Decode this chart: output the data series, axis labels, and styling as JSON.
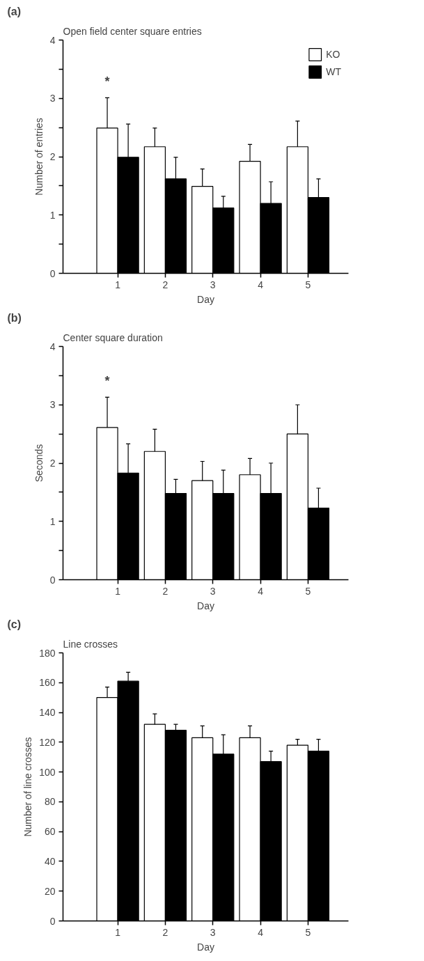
{
  "chart_data": [
    {
      "type": "bar",
      "title": "Open field center square entries",
      "xlabel": "Day",
      "ylabel": "Number of entries",
      "categories": [
        "1",
        "2",
        "3",
        "4",
        "5"
      ],
      "series": [
        {
          "name": "KO",
          "color": "#ffffff",
          "values": [
            2.49,
            2.17,
            1.49,
            1.92,
            2.17
          ],
          "errors": [
            [
              2.49,
              3.01
            ],
            [
              2.17,
              2.49
            ],
            [
              1.49,
              1.79
            ],
            [
              1.92,
              2.21
            ],
            [
              2.17,
              2.61
            ]
          ]
        },
        {
          "name": "WT",
          "color": "#000000",
          "values": [
            1.99,
            1.62,
            1.12,
            1.2,
            1.3
          ],
          "errors": [
            [
              1.99,
              2.56
            ],
            [
              1.62,
              1.99
            ],
            [
              1.12,
              1.32
            ],
            [
              1.2,
              1.57
            ],
            [
              1.3,
              1.62
            ]
          ]
        }
      ],
      "ylim": [
        0,
        4
      ],
      "yticks": [
        0,
        {
          "value": 0.5,
          "label": null
        },
        1,
        {
          "value": 1.5,
          "label": null
        },
        2,
        {
          "value": 2.5,
          "label": null
        },
        3,
        {
          "value": 3.5,
          "label": null
        },
        4
      ],
      "annotations": [
        "(a)",
        "*"
      ],
      "legend": "top right",
      "grid": false
    },
    {
      "type": "bar",
      "title": "Center square duration",
      "xlabel": "Day",
      "ylabel": "Seconds",
      "categories": [
        "1",
        "2",
        "3",
        "4",
        "5"
      ],
      "series": [
        {
          "color": "#ffffff",
          "values": [
            2.61,
            2.2,
            1.7,
            1.8,
            2.5
          ],
          "errors": [
            [
              2.61,
              3.13
            ],
            [
              2.2,
              2.58
            ],
            [
              1.7,
              2.03
            ],
            [
              1.8,
              2.08
            ],
            [
              2.5,
              3.0
            ]
          ]
        },
        {
          "color": "#000000",
          "values": [
            1.83,
            1.48,
            1.48,
            1.48,
            1.23
          ],
          "errors": [
            [
              1.83,
              2.33
            ],
            [
              1.48,
              1.72
            ],
            [
              1.48,
              1.88
            ],
            [
              1.48,
              2.0
            ],
            [
              1.23,
              1.57
            ]
          ]
        }
      ],
      "ylim": [
        0,
        4
      ],
      "yticks": [
        0,
        {
          "value": 0.5,
          "label": null
        },
        1,
        {
          "value": 1.5,
          "label": null
        },
        2,
        {
          "value": 2.5,
          "label": null
        },
        3,
        {
          "value": 3.5,
          "label": null
        },
        4
      ],
      "annotations": [
        "(b)",
        "*"
      ],
      "grid": false
    },
    {
      "type": "bar",
      "title": "Line crosses",
      "xlabel": "Day",
      "ylabel": "Number of line crosses",
      "categories": [
        "1",
        "2",
        "3",
        "4",
        "5"
      ],
      "series": [
        {
          "color": "#ffffff",
          "values": [
            150,
            132,
            123,
            123,
            118
          ],
          "errors": [
            [
              150,
              157
            ],
            [
              132,
              139
            ],
            [
              123,
              131
            ],
            [
              123,
              131
            ],
            [
              118,
              122
            ]
          ]
        },
        {
          "color": "#000000",
          "values": [
            161,
            128,
            112,
            107,
            114
          ],
          "errors": [
            [
              161,
              167
            ],
            [
              128,
              132
            ],
            [
              112,
              125
            ],
            [
              107,
              114
            ],
            [
              114,
              122
            ]
          ]
        }
      ],
      "ylim": [
        0,
        180
      ],
      "yticks": [
        0,
        20,
        40,
        60,
        80,
        100,
        120,
        140,
        160,
        180
      ],
      "annotations": [
        "(c)"
      ],
      "grid": false
    }
  ]
}
